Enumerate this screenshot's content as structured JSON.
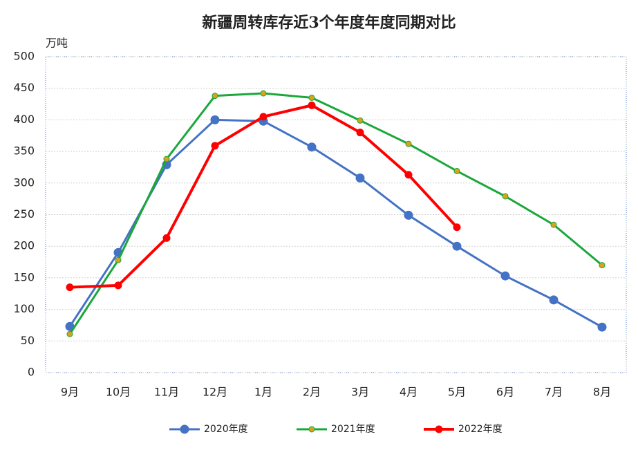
{
  "chart_data": {
    "type": "line",
    "title": "新疆周转库存近3个年度年度同期对比",
    "y_label": "万吨",
    "categories": [
      "9月",
      "10月",
      "11月",
      "12月",
      "1月",
      "2月",
      "3月",
      "4月",
      "5月",
      "6月",
      "7月",
      "8月"
    ],
    "series": [
      {
        "name": "2020年度",
        "color": "#4472c4",
        "marker_color": "#4472c4",
        "values": [
          73,
          190,
          329,
          400,
          398,
          357,
          308,
          249,
          200,
          153,
          115,
          72
        ]
      },
      {
        "name": "2021年度",
        "color": "#1aa83a",
        "marker_color": "#d9a21b",
        "values": [
          61,
          178,
          338,
          438,
          442,
          435,
          399,
          362,
          319,
          279,
          234,
          170
        ]
      },
      {
        "name": "2022年度",
        "color": "#ff0000",
        "marker_color": "#ff0000",
        "values": [
          135,
          138,
          213,
          359,
          405,
          423,
          380,
          313,
          230,
          null,
          null,
          null
        ]
      }
    ],
    "ylim": [
      0,
      500
    ],
    "yticks": [
      0,
      50,
      100,
      150,
      200,
      250,
      300,
      350,
      400,
      450,
      500
    ],
    "grid": true,
    "legend": "bottom"
  }
}
